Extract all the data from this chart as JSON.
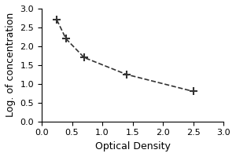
{
  "xlabel": "Optical Density",
  "ylabel": "Log. of concentration",
  "xlim": [
    0,
    3
  ],
  "ylim": [
    0,
    3
  ],
  "xticks": [
    0,
    0.5,
    1,
    1.5,
    2,
    2.5,
    3
  ],
  "yticks": [
    0,
    0.5,
    1,
    1.5,
    2,
    2.5,
    3
  ],
  "x_data": [
    0.25,
    0.4,
    0.7,
    1.4,
    2.5
  ],
  "y_data": [
    2.7,
    2.2,
    1.7,
    1.25,
    0.8
  ],
  "line_color": "#333333",
  "marker_color": "#333333",
  "line_style": "--",
  "marker_style": "P",
  "marker_size": 5,
  "line_width": 1.2,
  "background_color": "#ffffff",
  "xlabel_fontsize": 9,
  "ylabel_fontsize": 9,
  "tick_fontsize": 8
}
